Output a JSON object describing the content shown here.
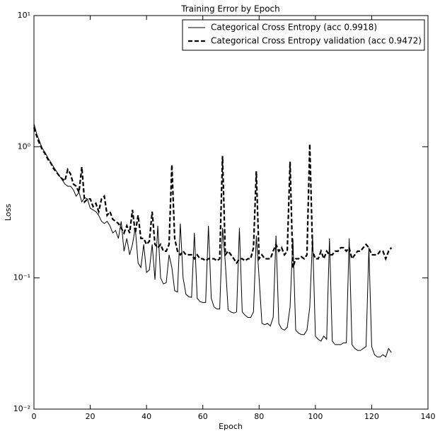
{
  "chart_data": {
    "type": "line",
    "title": "Training Error by Epoch",
    "xlabel": "Epoch",
    "ylabel": "Loss",
    "yscale": "log",
    "legend": "upper right",
    "x": [
      0,
      1,
      2,
      3,
      4,
      5,
      6,
      7,
      8,
      9,
      10,
      11,
      12,
      13,
      14,
      15,
      16,
      17,
      18,
      19,
      20,
      21,
      22,
      23,
      24,
      25,
      26,
      27,
      28,
      29,
      30,
      31,
      32,
      33,
      34,
      35,
      36,
      37,
      38,
      39,
      40,
      41,
      42,
      43,
      44,
      45,
      46,
      47,
      48,
      49,
      50,
      51,
      52,
      53,
      54,
      55,
      56,
      57,
      58,
      59,
      60,
      61,
      62,
      63,
      64,
      65,
      66,
      67,
      68,
      69,
      70,
      71,
      72,
      73,
      74,
      75,
      76,
      77,
      78,
      79,
      80,
      81,
      82,
      83,
      84,
      85,
      86,
      87,
      88,
      89,
      90,
      91,
      92,
      93,
      94,
      95,
      96,
      97,
      98,
      99,
      100,
      101,
      102,
      103,
      104,
      105,
      106,
      107,
      108,
      109,
      110,
      111,
      112,
      113,
      114,
      115,
      116,
      117,
      118,
      119,
      120,
      121,
      122,
      123,
      124,
      125,
      126,
      127
    ],
    "series": [
      {
        "name": "Categorical Cross Entropy (acc 0.9918)",
        "color": "#000000",
        "dash": "solid",
        "values": [
          1.5,
          1.25,
          1.1,
          0.97,
          0.9,
          0.82,
          0.76,
          0.7,
          0.65,
          0.6,
          0.56,
          0.52,
          0.5,
          0.5,
          0.47,
          0.42,
          0.45,
          0.38,
          0.41,
          0.4,
          0.34,
          0.33,
          0.32,
          0.3,
          0.27,
          0.26,
          0.27,
          0.25,
          0.22,
          0.23,
          0.2,
          0.27,
          0.16,
          0.2,
          0.15,
          0.18,
          0.24,
          0.13,
          0.12,
          0.18,
          0.11,
          0.115,
          0.18,
          0.097,
          0.25,
          0.1,
          0.09,
          0.092,
          0.15,
          0.12,
          0.08,
          0.078,
          0.26,
          0.1,
          0.075,
          0.072,
          0.071,
          0.22,
          0.07,
          0.066,
          0.065,
          0.065,
          0.25,
          0.07,
          0.06,
          0.058,
          0.058,
          0.24,
          0.13,
          0.057,
          0.055,
          0.054,
          0.055,
          0.24,
          0.055,
          0.052,
          0.05,
          0.05,
          0.055,
          0.21,
          0.1,
          0.045,
          0.044,
          0.045,
          0.043,
          0.05,
          0.21,
          0.045,
          0.041,
          0.04,
          0.042,
          0.06,
          0.2,
          0.04,
          0.038,
          0.037,
          0.037,
          0.04,
          0.06,
          0.21,
          0.036,
          0.034,
          0.033,
          0.036,
          0.034,
          0.2,
          0.033,
          0.031,
          0.031,
          0.031,
          0.032,
          0.032,
          0.2,
          0.031,
          0.029,
          0.028,
          0.028,
          0.029,
          0.03,
          0.17,
          0.03,
          0.026,
          0.025,
          0.025,
          0.026,
          0.025,
          0.029,
          0.027
        ]
      },
      {
        "name": "Categorical Cross Entropy validation (acc 0.9472)",
        "color": "#000000",
        "dash": "dashed",
        "values": [
          1.4,
          1.2,
          1.05,
          0.95,
          0.88,
          0.8,
          0.75,
          0.68,
          0.64,
          0.6,
          0.57,
          0.55,
          0.67,
          0.62,
          0.52,
          0.5,
          0.45,
          0.7,
          0.38,
          0.4,
          0.4,
          0.35,
          0.37,
          0.32,
          0.4,
          0.42,
          0.3,
          0.32,
          0.28,
          0.27,
          0.26,
          0.24,
          0.22,
          0.25,
          0.22,
          0.33,
          0.22,
          0.3,
          0.2,
          0.2,
          0.18,
          0.19,
          0.32,
          0.18,
          0.17,
          0.18,
          0.16,
          0.16,
          0.18,
          0.73,
          0.2,
          0.16,
          0.15,
          0.16,
          0.15,
          0.15,
          0.15,
          0.14,
          0.15,
          0.14,
          0.14,
          0.135,
          0.14,
          0.14,
          0.14,
          0.135,
          0.14,
          0.85,
          0.15,
          0.16,
          0.15,
          0.14,
          0.13,
          0.14,
          0.14,
          0.135,
          0.14,
          0.14,
          0.17,
          0.65,
          0.14,
          0.15,
          0.14,
          0.14,
          0.14,
          0.16,
          0.18,
          0.16,
          0.17,
          0.15,
          0.16,
          0.77,
          0.12,
          0.14,
          0.14,
          0.145,
          0.14,
          0.15,
          1.05,
          0.16,
          0.14,
          0.14,
          0.16,
          0.14,
          0.16,
          0.15,
          0.15,
          0.16,
          0.16,
          0.17,
          0.17,
          0.16,
          0.17,
          0.14,
          0.15,
          0.16,
          0.16,
          0.17,
          0.18,
          0.17,
          0.15,
          0.15,
          0.15,
          0.16,
          0.16,
          0.14,
          0.16,
          0.17
        ]
      }
    ],
    "xlim": [
      0,
      140
    ],
    "xticks": [
      0,
      20,
      40,
      60,
      80,
      100,
      120,
      140
    ],
    "ylim": [
      0.01,
      10
    ],
    "yticks": [
      {
        "value": 0.01,
        "label": "10⁻²"
      },
      {
        "value": 0.1,
        "label": "10⁻¹"
      },
      {
        "value": 1,
        "label": "10⁰"
      },
      {
        "value": 10,
        "label": "10¹"
      }
    ]
  }
}
